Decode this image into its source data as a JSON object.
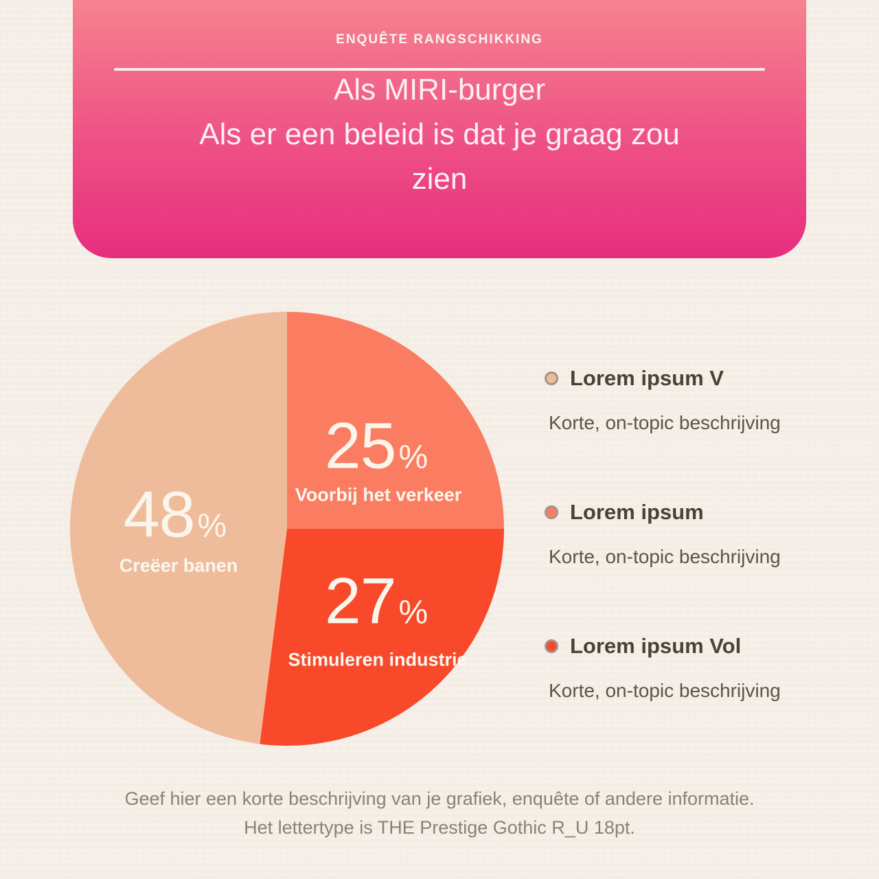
{
  "page": {
    "background_color": "#F6EFE8"
  },
  "header": {
    "eyebrow": "ENQUÊTE RANGSCHIKKING",
    "title_line_1": "Als MIRI-burger",
    "title_line_2": "Als er een beleid is dat je graag zou",
    "title_line_3": "zien",
    "gradient_top": "#F6838F",
    "gradient_bottom": "#E62E7E"
  },
  "chart_data": {
    "type": "pie",
    "title": "Als MIRI-burger — Als er een beleid is dat je graag zou zien",
    "start_angle_deg": 0,
    "direction": "clockwise",
    "legend_position": "right",
    "slices": [
      {
        "label": "Voorbij het verkeer",
        "value": 25,
        "unit": "%",
        "color": "#FB7D61"
      },
      {
        "label": "Stimuleren industrie",
        "value": 27,
        "unit": "%",
        "color": "#F8492A"
      },
      {
        "label": "Creëer banen",
        "value": 48,
        "unit": "%",
        "color": "#EEBC9B"
      }
    ]
  },
  "legend": {
    "items": [
      {
        "swatch_color": "#EEBC9B",
        "title": "Lorem ipsum V",
        "description": "Korte, on-topic beschrijving"
      },
      {
        "swatch_color": "#FB7D61",
        "title": "Lorem ipsum",
        "description": "Korte, on-topic beschrijving"
      },
      {
        "swatch_color": "#F8492A",
        "title": "Lorem ipsum Vol",
        "description": "Korte, on-topic beschrijving"
      }
    ]
  },
  "footer": {
    "line_1": "Geef hier een korte beschrijving van je grafiek, enquête of andere informatie.",
    "line_2": "Het lettertype is THE Prestige Gothic R_U 18pt."
  }
}
